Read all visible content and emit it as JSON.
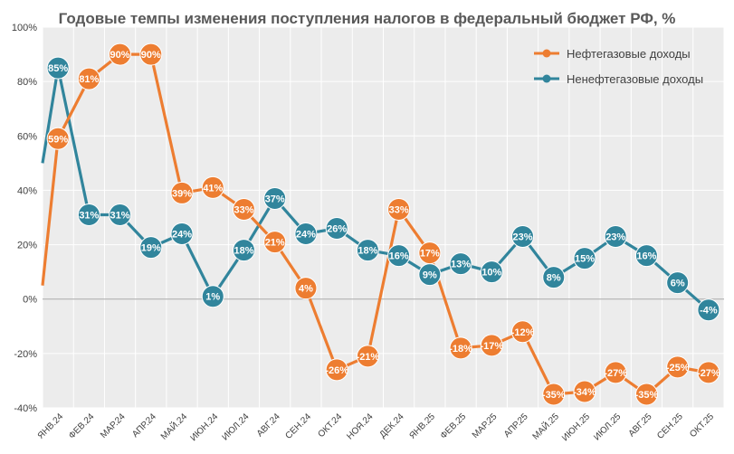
{
  "chart_data": {
    "type": "line",
    "title": "Годовые темпы изменения поступления налогов в федеральный бюджет РФ, %",
    "ylim": [
      -40,
      100
    ],
    "yticks": [
      -40,
      -20,
      0,
      20,
      40,
      60,
      80,
      100
    ],
    "ytick_labels": [
      "-40%",
      "-20%",
      "0%",
      "20%",
      "40%",
      "60%",
      "80%",
      "100%"
    ],
    "grid": true,
    "legend_position": "top-right",
    "categories": [
      "ЯНВ.24",
      "ФЕВ.24",
      "МАР.24",
      "АПР.24",
      "МАЙ.24",
      "ИЮН.24",
      "ИЮЛ.24",
      "АВГ.24",
      "СЕН.24",
      "ОКТ.24",
      "НОЯ.24",
      "ДЕК.24",
      "ЯНВ.25",
      "ФЕВ.25",
      "МАР.25",
      "АПР.25",
      "МАЙ.25",
      "ИЮН.25",
      "ИЮЛ.25",
      "АВГ.25",
      "СЕН.25",
      "ОКТ.25"
    ],
    "series": [
      {
        "name": "Нефтегазовые доходы",
        "color": "#ED7D31",
        "lead_in_value": 5,
        "values": [
          59,
          81,
          90,
          90,
          39,
          41,
          33,
          21,
          4,
          -26,
          -21,
          33,
          17,
          -18,
          -17,
          -12,
          -35,
          -34,
          -27,
          -35,
          -25,
          -27
        ],
        "labels": [
          "59%",
          "81%",
          "90%",
          "90%",
          "39%",
          "41%",
          "33%",
          "21%",
          "4%",
          "-26%",
          "-21%",
          "33%",
          "17%",
          "-18%",
          "-17%",
          "-12%",
          "-35%",
          "-34%",
          "-27%",
          "-35%",
          "-25%",
          "-27%"
        ]
      },
      {
        "name": "Ненефтегазовые доходы",
        "color": "#31859C",
        "lead_in_value": 50,
        "values": [
          85,
          31,
          31,
          19,
          24,
          1,
          18,
          37,
          24,
          26,
          18,
          16,
          9,
          13,
          10,
          23,
          8,
          15,
          23,
          16,
          6,
          -4
        ],
        "labels": [
          "85%",
          "31%",
          "31%",
          "19%",
          "24%",
          "1%",
          "18%",
          "37%",
          "24%",
          "26%",
          "18%",
          "16%",
          "9%",
          "13%",
          "10%",
          "23%",
          "8%",
          "15%",
          "23%",
          "16%",
          "6%",
          "-4%"
        ]
      }
    ]
  }
}
